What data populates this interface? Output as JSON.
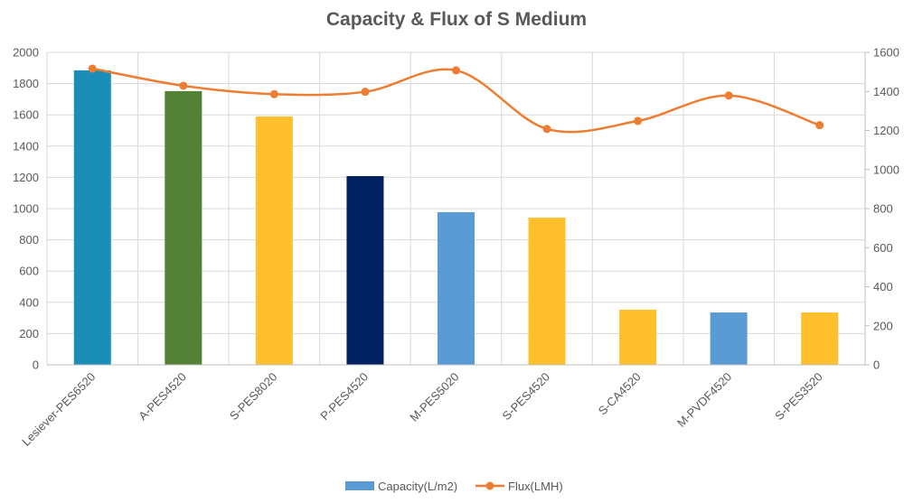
{
  "chart_data": {
    "type": "bar",
    "title": "Capacity & Flux of S Medium",
    "categories": [
      "Lesiever-PES6520",
      "A-PES4520",
      "S-PES8020",
      "P-PES4520",
      "M-PES5020",
      "S-PES4520",
      "S-CA4520",
      "M-PVDF4520",
      "S-PES3520"
    ],
    "series": [
      {
        "name": "Capacity(L/m2)",
        "type": "bar",
        "axis": "left",
        "values": [
          1885,
          1752,
          1590,
          1208,
          977,
          942,
          353,
          335,
          335
        ],
        "bar_colors": [
          "#1B8EB8",
          "#538135",
          "#FFC02E",
          "#002060",
          "#5B9BD5",
          "#FFC02E",
          "#FFC02E",
          "#5B9BD5",
          "#FFC02E"
        ],
        "legend_color": "#5B9BD5"
      },
      {
        "name": "Flux(LMH)",
        "type": "line",
        "axis": "right",
        "smooth": true,
        "values": [
          1517,
          1429,
          1386,
          1398,
          1508,
          1208,
          1249,
          1379,
          1227
        ],
        "color": "#ED7D31"
      }
    ],
    "left_axis": {
      "min": 0,
      "max": 2000,
      "step": 200,
      "ticks": [
        "0",
        "200",
        "400",
        "600",
        "800",
        "1000",
        "1200",
        "1400",
        "1600",
        "1800",
        "2000"
      ]
    },
    "right_axis": {
      "min": 0,
      "max": 1600,
      "step": 200,
      "ticks": [
        "0",
        "200",
        "400",
        "600",
        "800",
        "1000",
        "1200",
        "1400",
        "1600"
      ]
    },
    "grid": true,
    "legend_position": "bottom"
  }
}
